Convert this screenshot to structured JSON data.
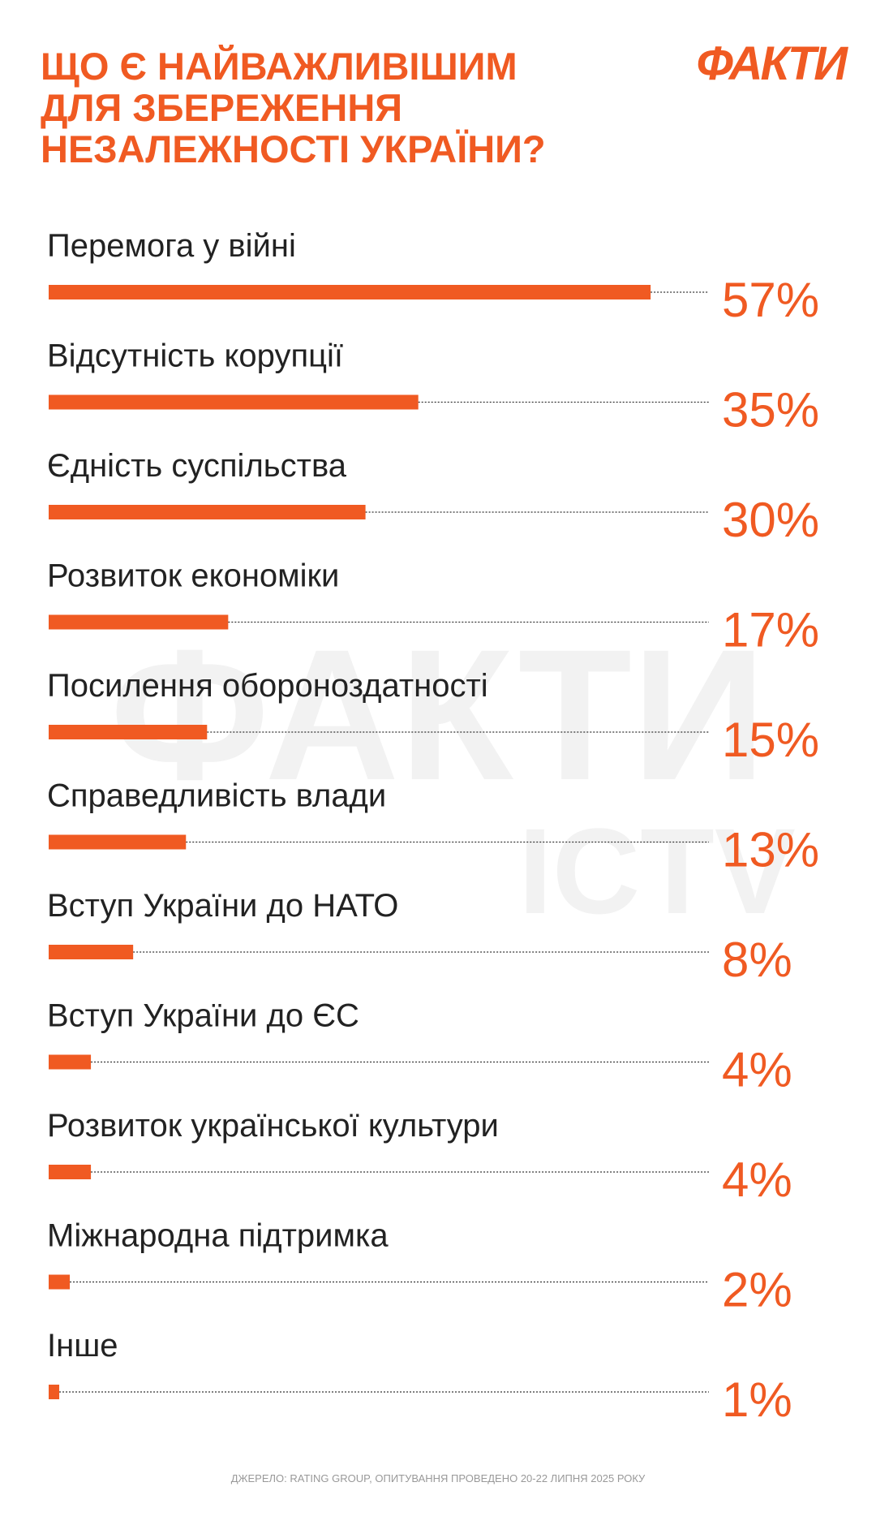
{
  "chart_data": {
    "type": "hbar",
    "title": [
      "ЩО Є НАЙВАЖЛИВІШИМ",
      "ДЛЯ ЗБЕРЕЖЕННЯ",
      "НЕЗАЛЕЖНОСТІ УКРАЇНИ?"
    ],
    "categories": [
      "Перемога у війні",
      "Відсутність корупції",
      "Єдність суспільства",
      "Розвиток економіки",
      "Посилення обороноздатності",
      "Справедливість влади",
      "Вступ України до НАТО",
      "Вступ України до ЄС",
      "Розвиток української культури",
      "Міжнародна підтримка",
      "Інше"
    ],
    "values": [
      57,
      35,
      30,
      17,
      15,
      13,
      8,
      4,
      4,
      2,
      1
    ],
    "value_labels": [
      "57%",
      "35%",
      "30%",
      "17%",
      "15%",
      "13%",
      "8%",
      "4%",
      "4%",
      "2%",
      "1%"
    ],
    "color": "#f05a22"
  },
  "logo": "ФАКТИ",
  "watermark": [
    "ФАКТИ",
    "ICTV"
  ],
  "source": "ДЖЕРЕЛО: RATING GROUP, ОПИТУВАННЯ ПРОВЕДЕНО 20-22 ЛИПНЯ 2025 РОКУ"
}
